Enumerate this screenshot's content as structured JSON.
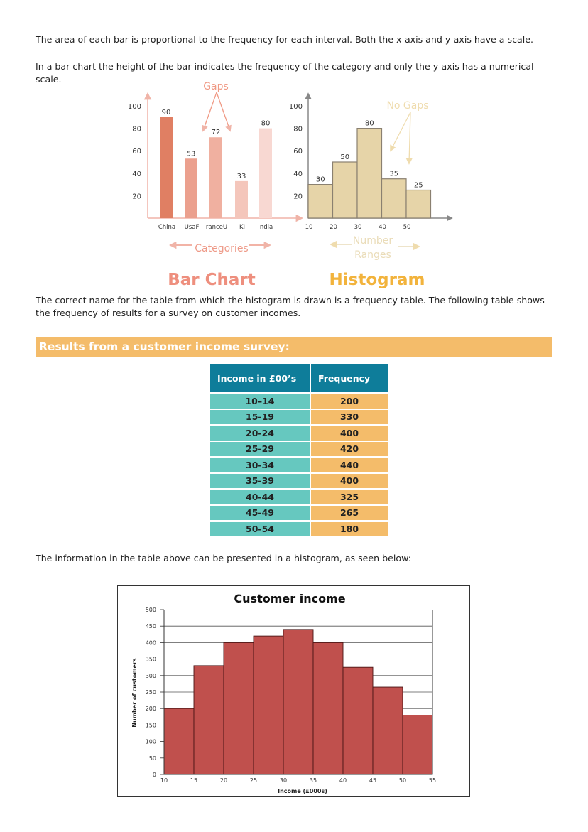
{
  "text": {
    "p1": "The area of each bar is proportional to the frequency for each interval. Both the x-axis and y-axis have a scale.",
    "p2": "In a bar chart the height of the bar indicates the frequency of the category and only the y-axis has a numerical scale.",
    "p3": "The correct name for the table from which the histogram is drawn is a frequency table. The following table shows the frequency of results for a survey on customer incomes.",
    "p4": "The information in the table above can be presented in a histogram, as seen below:"
  },
  "banner": "Results from a customer income survey:",
  "table": {
    "headers": [
      "Income in £00’s",
      "Frequency"
    ],
    "rows": [
      [
        "10–14",
        "200"
      ],
      [
        "15-19",
        "330"
      ],
      [
        "20-24",
        "400"
      ],
      [
        "25-29",
        "420"
      ],
      [
        "30-34",
        "440"
      ],
      [
        "35-39",
        "400"
      ],
      [
        "40-44",
        "325"
      ],
      [
        "45-49",
        "265"
      ],
      [
        "50-54",
        "180"
      ]
    ]
  },
  "colors": {
    "bar_shades": [
      "#e07f63",
      "#eba08e",
      "#f0b0a0",
      "#f4c6bb",
      "#f8d8d2"
    ],
    "bar_axis": "#f0b4a8",
    "bar_title": "#ee8f7e",
    "hist_fill": "#e6d4a8",
    "hist_title": "#f2b33c",
    "hist_annot": "#efdcae",
    "income_bar": "#c0504d"
  },
  "chart_data": [
    {
      "type": "bar",
      "title": "Bar Chart",
      "categories": [
        "China",
        "UsaF",
        "ranceU",
        "KI",
        "ndia"
      ],
      "values": [
        90,
        53,
        72,
        33,
        80
      ],
      "yticks": [
        20,
        40,
        60,
        80,
        100
      ],
      "ylim": [
        0,
        100
      ],
      "annotation": "Gaps",
      "xlabel": "Categories"
    },
    {
      "type": "bar",
      "title": "Histogram",
      "bins": [
        [
          10,
          20
        ],
        [
          20,
          30
        ],
        [
          30,
          40
        ],
        [
          40,
          50
        ],
        [
          50,
          60
        ]
      ],
      "values": [
        30,
        50,
        80,
        35,
        25
      ],
      "xticks": [
        10,
        20,
        30,
        40,
        50
      ],
      "yticks": [
        20,
        40,
        60,
        80,
        100
      ],
      "ylim": [
        0,
        100
      ],
      "annotation": "No Gaps",
      "xlabel": [
        "Number",
        "Ranges"
      ]
    },
    {
      "type": "bar",
      "title": "Customer income",
      "xlabel": "Income (£000s)",
      "ylabel": "Number of customers",
      "bins": [
        [
          10,
          15
        ],
        [
          15,
          20
        ],
        [
          20,
          25
        ],
        [
          25,
          30
        ],
        [
          30,
          35
        ],
        [
          35,
          40
        ],
        [
          40,
          45
        ],
        [
          45,
          50
        ],
        [
          50,
          55
        ]
      ],
      "values": [
        200,
        330,
        400,
        420,
        440,
        400,
        325,
        265,
        180
      ],
      "xticks": [
        10,
        15,
        20,
        25,
        30,
        35,
        40,
        45,
        50,
        55
      ],
      "yticks": [
        0,
        50,
        100,
        150,
        200,
        250,
        300,
        350,
        400,
        450,
        500
      ],
      "xlim": [
        10,
        55
      ],
      "ylim": [
        0,
        500
      ],
      "grid": true
    }
  ]
}
